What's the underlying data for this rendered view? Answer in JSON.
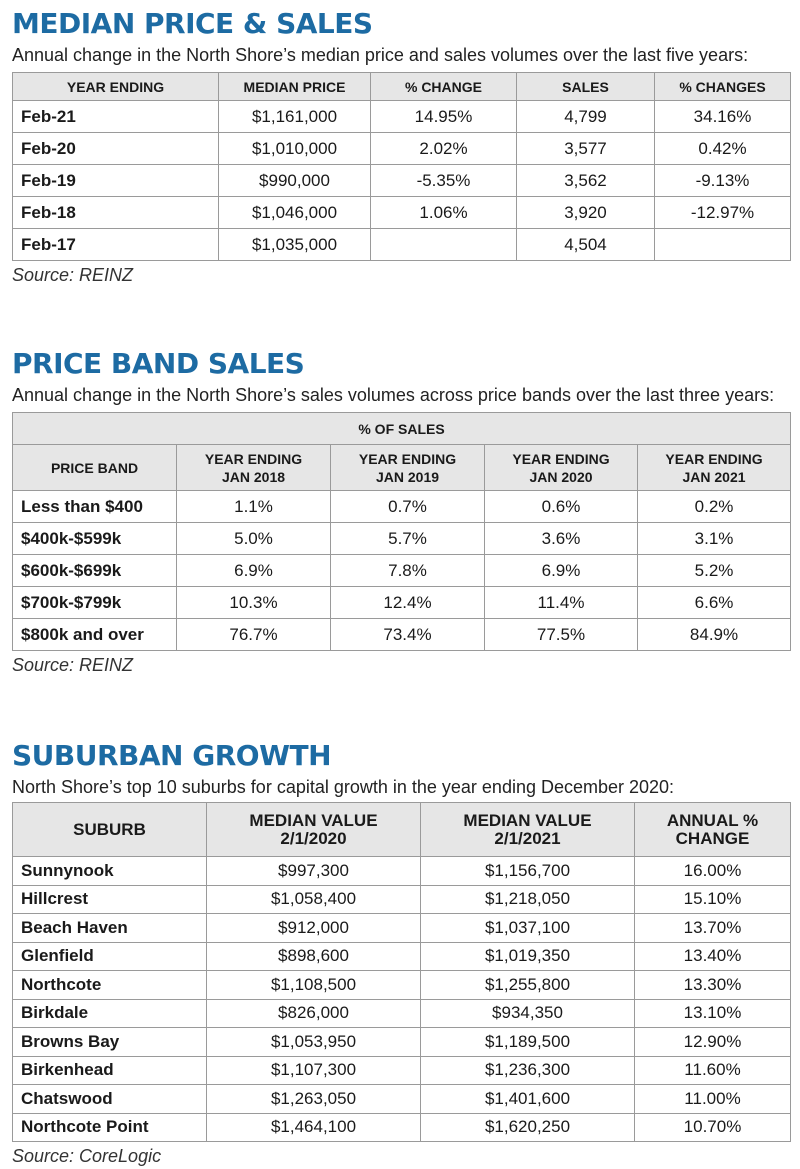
{
  "median": {
    "title": "MEDIAN PRICE & SALES",
    "subtitle": "Annual change in the North Shore’s median price and sales volumes over the last five years:",
    "headers": [
      "YEAR ENDING",
      "MEDIAN PRICE",
      "% CHANGE",
      "SALES",
      "% CHANGES"
    ],
    "rows": [
      [
        "Feb-21",
        "$1,161,000",
        "14.95%",
        "4,799",
        "34.16%"
      ],
      [
        "Feb-20",
        "$1,010,000",
        "2.02%",
        "3,577",
        "0.42%"
      ],
      [
        "Feb-19",
        "$990,000",
        "-5.35%",
        "3,562",
        "-9.13%"
      ],
      [
        "Feb-18",
        "$1,046,000",
        "1.06%",
        "3,920",
        "-12.97%"
      ],
      [
        "Feb-17",
        "$1,035,000",
        "",
        "4,504",
        ""
      ]
    ],
    "source": "Source: REINZ"
  },
  "priceband": {
    "title": "PRICE BAND SALES",
    "subtitle": "Annual change in the North Shore’s sales volumes across price bands over the last three years:",
    "group_header": "% OF SALES",
    "headers": [
      "PRICE BAND",
      "YEAR ENDING\nJAN 2018",
      "YEAR ENDING\nJAN 2019",
      "YEAR ENDING\nJAN 2020",
      "YEAR ENDING\nJAN 2021"
    ],
    "rows": [
      [
        "Less than $400",
        "1.1%",
        "0.7%",
        "0.6%",
        "0.2%"
      ],
      [
        "$400k-$599k",
        "5.0%",
        "5.7%",
        "3.6%",
        "3.1%"
      ],
      [
        "$600k-$699k",
        "6.9%",
        "7.8%",
        "6.9%",
        "5.2%"
      ],
      [
        "$700k-$799k",
        "10.3%",
        "12.4%",
        "11.4%",
        "6.6%"
      ],
      [
        "$800k and over",
        "76.7%",
        "73.4%",
        "77.5%",
        "84.9%"
      ]
    ],
    "source": "Source: REINZ"
  },
  "suburban": {
    "title": "SUBURBAN GROWTH",
    "subtitle": "North Shore’s top 10 suburbs for capital growth in the year ending December 2020:",
    "headers": [
      "SUBURB",
      "MEDIAN VALUE\n2/1/2020",
      "MEDIAN VALUE\n2/1/2021",
      "ANNUAL %\nCHANGE"
    ],
    "rows": [
      [
        "Sunnynook",
        "$997,300",
        "$1,156,700",
        "16.00%"
      ],
      [
        "Hillcrest",
        "$1,058,400",
        "$1,218,050",
        "15.10%"
      ],
      [
        "Beach Haven",
        "$912,000",
        "$1,037,100",
        "13.70%"
      ],
      [
        "Glenfield",
        "$898,600",
        "$1,019,350",
        "13.40%"
      ],
      [
        "Northcote",
        "$1,108,500",
        "$1,255,800",
        "13.30%"
      ],
      [
        "Birkdale",
        "$826,000",
        "$934,350",
        "13.10%"
      ],
      [
        "Browns Bay",
        "$1,053,950",
        "$1,189,500",
        "12.90%"
      ],
      [
        "Birkenhead",
        "$1,107,300",
        "$1,236,300",
        "11.60%"
      ],
      [
        "Chatswood",
        "$1,263,050",
        "$1,401,600",
        "11.00%"
      ],
      [
        "Northcote Point",
        "$1,464,100",
        "$1,620,250",
        "10.70%"
      ]
    ],
    "source": "Source: CoreLogic"
  },
  "colors": {
    "title": "#1d6ba3",
    "header_bg": "#e6e6e6",
    "border": "#9a9a9a"
  }
}
